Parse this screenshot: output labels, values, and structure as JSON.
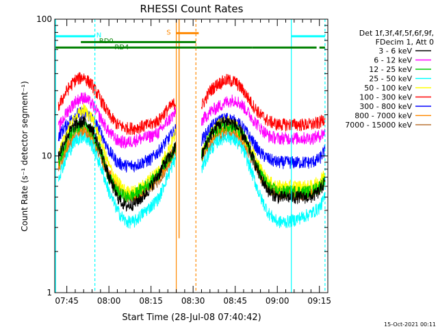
{
  "chart_data": {
    "type": "line",
    "title": "RHESSI Count Rates",
    "xlabel": "Start Time (28-Jul-08 07:40:42)",
    "ylabel": "Count Rate (s⁻¹ detector segment⁻¹)",
    "yscale": "log",
    "ylim": [
      1,
      100
    ],
    "xlim": [
      "07:40:42",
      "09:18:00"
    ],
    "y_ticks": [
      "1",
      "10",
      "100"
    ],
    "x_ticks": [
      "07:45",
      "08:00",
      "08:15",
      "08:30",
      "08:45",
      "09:00",
      "09:15"
    ],
    "grid": false,
    "legend_position": "right",
    "legend_header": [
      "Det 1f,3f,4f,5f,6f,9f,",
      "FDecim 1, Att 0"
    ],
    "x": [
      "07:42",
      "07:45",
      "07:48",
      "07:51",
      "07:54",
      "07:57",
      "08:00",
      "08:03",
      "08:06",
      "08:09",
      "08:12",
      "08:15",
      "08:18",
      "08:20",
      "08:22",
      "08:24",
      "08:25",
      "08:33",
      "08:36",
      "08:39",
      "08:42",
      "08:45",
      "08:48",
      "08:51",
      "08:54",
      "08:57",
      "09:00",
      "09:03",
      "09:06",
      "09:09",
      "09:12",
      "09:15",
      "09:17"
    ],
    "series": [
      {
        "name": "3 - 6 keV",
        "color": "#000000",
        "values": [
          10,
          14,
          17,
          18,
          16,
          11,
          7,
          5,
          4.3,
          4.5,
          5,
          6,
          7.5,
          9,
          10,
          12,
          null,
          10,
          14,
          17,
          18,
          17,
          14,
          10,
          7,
          5.5,
          5,
          5,
          5,
          5,
          5,
          5.5,
          6.5
        ]
      },
      {
        "name": "6 - 12 keV",
        "color": "#ff00ff",
        "values": [
          16,
          21,
          25,
          27,
          24,
          19,
          15,
          13,
          12.5,
          13,
          13.5,
          14,
          15,
          17,
          19,
          21,
          null,
          18,
          21,
          23,
          25,
          26,
          23,
          19,
          16,
          14,
          13.5,
          13.5,
          13.5,
          13.5,
          13.5,
          14,
          15
        ]
      },
      {
        "name": "12 - 25 keV",
        "color": "#00cc00",
        "values": [
          9,
          13,
          16,
          17,
          15,
          11,
          7,
          5.5,
          5,
          5.2,
          5.8,
          6.5,
          7.5,
          9,
          10,
          12,
          null,
          10,
          14,
          16,
          17,
          16,
          14,
          10,
          7.5,
          6,
          5.5,
          5.5,
          5.5,
          5.5,
          5.5,
          6,
          6.5
        ]
      },
      {
        "name": "25 - 50 keV",
        "color": "#00ffff",
        "values": [
          7,
          10,
          13,
          14,
          12,
          8.5,
          5.5,
          4,
          3.3,
          3.3,
          3.8,
          4.3,
          5,
          6.5,
          8,
          10,
          null,
          8,
          11,
          13,
          14,
          13,
          11,
          7.5,
          5,
          3.8,
          3.3,
          3.3,
          3.4,
          3.6,
          3.8,
          4.2,
          5
        ]
      },
      {
        "name": "50 - 100 keV",
        "color": "#ffff00",
        "values": [
          10,
          15,
          19,
          22,
          19,
          13,
          8.5,
          6.5,
          5.5,
          5.5,
          6,
          7,
          8,
          10,
          12,
          15,
          null,
          11,
          14,
          17,
          18,
          17,
          14,
          11,
          8,
          6.5,
          6,
          6,
          6,
          6,
          6,
          6.5,
          7.5
        ]
      },
      {
        "name": "100 - 300 keV",
        "color": "#ff0000",
        "values": [
          23,
          30,
          36,
          38,
          33,
          26,
          20,
          17,
          16,
          16,
          16.5,
          17,
          18.5,
          21,
          23,
          25,
          null,
          23,
          30,
          34,
          36,
          35,
          30,
          24,
          20,
          18,
          17,
          17,
          17,
          17,
          17,
          17.5,
          19
        ]
      },
      {
        "name": "300 - 800 keV",
        "color": "#0000ff",
        "values": [
          14,
          17,
          20,
          21,
          19,
          15,
          11,
          9,
          8.5,
          8.5,
          9,
          9.5,
          11,
          12.5,
          14,
          16,
          null,
          13,
          16,
          18,
          19,
          18,
          16,
          13,
          10.5,
          9.5,
          9,
          9,
          9,
          9,
          9,
          9.5,
          11
        ]
      },
      {
        "name": "800 - 7000 keV",
        "color": "#ff8800",
        "values": [
          8.5,
          12,
          15,
          16,
          14,
          10.5,
          7.5,
          6,
          5.2,
          5.2,
          5.6,
          6.3,
          7.2,
          8.5,
          10,
          12,
          null,
          10,
          13,
          15,
          16,
          15,
          13,
          10,
          7.3,
          6,
          5.6,
          5.5,
          5.5,
          5.5,
          5.6,
          6,
          7
        ]
      },
      {
        "name": "7000 - 15000 keV",
        "color": "#b87333",
        "values": [
          8,
          11,
          14,
          15,
          13,
          10,
          7,
          5.7,
          5,
          5,
          5.4,
          6,
          6.8,
          8,
          9.5,
          11.5,
          null,
          9.5,
          12,
          14,
          15,
          14,
          12,
          9.5,
          7,
          5.8,
          5.4,
          5.3,
          5.3,
          5.3,
          5.4,
          5.8,
          6.7
        ]
      }
    ],
    "flag_bars": [
      {
        "label": "N",
        "color": "#00ffff",
        "level": 75,
        "segments": [
          [
            "07:41:00",
            "07:55:00"
          ],
          [
            "09:05:00",
            "09:17:00"
          ]
        ]
      },
      {
        "label": "RD0",
        "color": "#008000",
        "level": 68,
        "segments": [
          [
            "07:50:00",
            "08:31:00"
          ]
        ]
      },
      {
        "label": "RD4",
        "color": "#008000",
        "level": 62,
        "segments": [
          [
            "07:41:00",
            "08:31:00"
          ],
          [
            "08:31:00",
            "08:51:00"
          ],
          [
            "08:51:00",
            "09:14:00"
          ],
          [
            "09:15:00",
            "09:17:00"
          ]
        ]
      },
      {
        "label": "S",
        "color": "#ff8800",
        "level": 79,
        "segments": [
          [
            "08:24:00",
            "08:32:00"
          ]
        ]
      }
    ],
    "vlines": [
      {
        "time": "07:41:00",
        "color": "#00ffff",
        "style": "solid"
      },
      {
        "time": "07:55:00",
        "color": "#00ffff",
        "style": "dashed"
      },
      {
        "time": "08:24:00",
        "color": "#ff8800",
        "style": "solid"
      },
      {
        "time": "08:31:00",
        "color": "#ff8800",
        "style": "dashed"
      },
      {
        "time": "09:05:00",
        "color": "#00ffff",
        "style": "solid"
      },
      {
        "time": "09:17:00",
        "color": "#00ffff",
        "style": "dashed"
      }
    ],
    "spike": {
      "time": "08:25:00",
      "color": "#ff8800",
      "low": 2.5,
      "high": 100
    }
  },
  "footer_timestamp": "15-Oct-2021 00:11"
}
